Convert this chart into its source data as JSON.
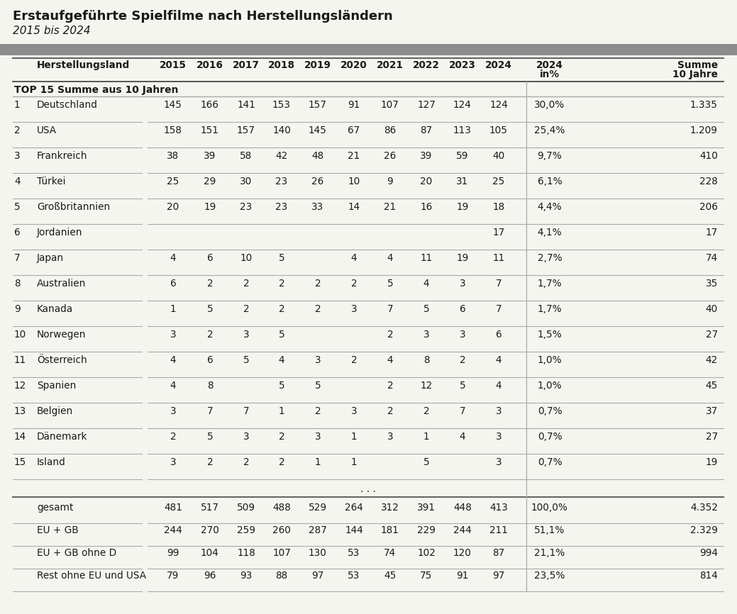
{
  "title": "Erstaufgeführte Spielfilme nach Herstellungsländern",
  "subtitle": "2015 bis 2024",
  "background_color": "#f5f5f0",
  "header_bar_color": "#8c8c8c",
  "section_header": "TOP 15 Summe aus 10 Jahren",
  "rows": [
    {
      "rank": "1",
      "country": "Deutschland",
      "vals": [
        "145",
        "166",
        "141",
        "153",
        "157",
        "91",
        "107",
        "127",
        "124",
        "124"
      ],
      "pct": "30,0%",
      "sum": "1.335"
    },
    {
      "rank": "2",
      "country": "USA",
      "vals": [
        "158",
        "151",
        "157",
        "140",
        "145",
        "67",
        "86",
        "87",
        "113",
        "105"
      ],
      "pct": "25,4%",
      "sum": "1.209"
    },
    {
      "rank": "3",
      "country": "Frankreich",
      "vals": [
        "38",
        "39",
        "58",
        "42",
        "48",
        "21",
        "26",
        "39",
        "59",
        "40"
      ],
      "pct": "9,7%",
      "sum": "410"
    },
    {
      "rank": "4",
      "country": "Türkei",
      "vals": [
        "25",
        "29",
        "30",
        "23",
        "26",
        "10",
        "9",
        "20",
        "31",
        "25"
      ],
      "pct": "6,1%",
      "sum": "228"
    },
    {
      "rank": "5",
      "country": "Großbritannien",
      "vals": [
        "20",
        "19",
        "23",
        "23",
        "33",
        "14",
        "21",
        "16",
        "19",
        "18"
      ],
      "pct": "4,4%",
      "sum": "206"
    },
    {
      "rank": "6",
      "country": "Jordanien",
      "vals": [
        "",
        "",
        "",
        "",
        "",
        "",
        "",
        "",
        "",
        "17"
      ],
      "pct": "4,1%",
      "sum": "17"
    },
    {
      "rank": "7",
      "country": "Japan",
      "vals": [
        "4",
        "6",
        "10",
        "5",
        "",
        "4",
        "4",
        "11",
        "19",
        "11"
      ],
      "pct": "2,7%",
      "sum": "74"
    },
    {
      "rank": "8",
      "country": "Australien",
      "vals": [
        "6",
        "2",
        "2",
        "2",
        "2",
        "2",
        "5",
        "4",
        "3",
        "7"
      ],
      "pct": "1,7%",
      "sum": "35"
    },
    {
      "rank": "9",
      "country": "Kanada",
      "vals": [
        "1",
        "5",
        "2",
        "2",
        "2",
        "3",
        "7",
        "5",
        "6",
        "7"
      ],
      "pct": "1,7%",
      "sum": "40"
    },
    {
      "rank": "10",
      "country": "Norwegen",
      "vals": [
        "3",
        "2",
        "3",
        "5",
        "",
        "",
        "2",
        "3",
        "3",
        "6"
      ],
      "pct": "1,5%",
      "sum": "27"
    },
    {
      "rank": "11",
      "country": "Österreich",
      "vals": [
        "4",
        "6",
        "5",
        "4",
        "3",
        "2",
        "4",
        "8",
        "2",
        "4"
      ],
      "pct": "1,0%",
      "sum": "42"
    },
    {
      "rank": "12",
      "country": "Spanien",
      "vals": [
        "4",
        "8",
        "",
        "5",
        "5",
        "",
        "2",
        "12",
        "5",
        "4"
      ],
      "pct": "1,0%",
      "sum": "45"
    },
    {
      "rank": "13",
      "country": "Belgien",
      "vals": [
        "3",
        "7",
        "7",
        "1",
        "2",
        "3",
        "2",
        "2",
        "7",
        "3"
      ],
      "pct": "0,7%",
      "sum": "37"
    },
    {
      "rank": "14",
      "country": "Dänemark",
      "vals": [
        "2",
        "5",
        "3",
        "2",
        "3",
        "1",
        "3",
        "1",
        "4",
        "3"
      ],
      "pct": "0,7%",
      "sum": "27"
    },
    {
      "rank": "15",
      "country": "Island",
      "vals": [
        "3",
        "2",
        "2",
        "2",
        "1",
        "1",
        "",
        "5",
        "",
        "3"
      ],
      "pct": "0,7%",
      "sum": "19"
    }
  ],
  "footer_rows": [
    {
      "label": "gesamt",
      "vals": [
        "481",
        "517",
        "509",
        "488",
        "529",
        "264",
        "312",
        "391",
        "448",
        "413"
      ],
      "pct": "100,0%",
      "sum": "4.352"
    },
    {
      "label": "EU + GB",
      "vals": [
        "244",
        "270",
        "259",
        "260",
        "287",
        "144",
        "181",
        "229",
        "244",
        "211"
      ],
      "pct": "51,1%",
      "sum": "2.329"
    },
    {
      "label": "EU + GB ohne D",
      "vals": [
        "99",
        "104",
        "118",
        "107",
        "130",
        "53",
        "74",
        "102",
        "120",
        "87"
      ],
      "pct": "21,1%",
      "sum": "994"
    },
    {
      "label": "Rest ohne EU und USA",
      "vals": [
        "79",
        "96",
        "93",
        "88",
        "97",
        "53",
        "45",
        "75",
        "91",
        "97"
      ],
      "pct": "23,5%",
      "sum": "814"
    }
  ],
  "text_color": "#1a1a1a",
  "year_cols": [
    "2015",
    "2016",
    "2017",
    "2018",
    "2019",
    "2020",
    "2021",
    "2022",
    "2023",
    "2024"
  ]
}
